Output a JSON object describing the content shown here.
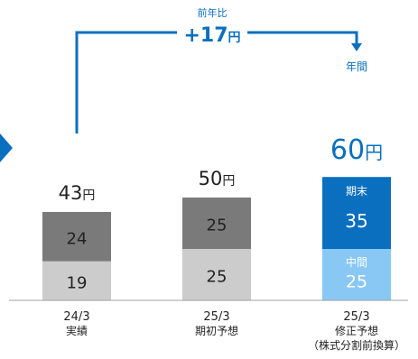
{
  "colors": {
    "h2_prev": "#7a7a7a",
    "h1_prev": "#cccccc",
    "h2_latest": "#0b6fbf",
    "h1_latest": "#89c8f5",
    "accent": "#0b6fbf",
    "axis": "#a0a0a0",
    "arrow_tip": "#0b6fbf"
  },
  "unit": "円",
  "yoy": {
    "label": "前年比",
    "value": "+17"
  },
  "annual_label": "年間",
  "segment_names": {
    "h1": "中間",
    "h2": "期末"
  },
  "chart_data": {
    "type": "bar",
    "stacked": true,
    "categories": [
      {
        "line1": "24/3",
        "line2": "実績",
        "line3": ""
      },
      {
        "line1": "25/3",
        "line2": "期初予想",
        "line3": ""
      },
      {
        "line1": "25/3",
        "line2": "修正予想",
        "line3": "（株式分割前換算）"
      }
    ],
    "series": [
      {
        "key": "h1",
        "values": [
          19,
          25,
          25
        ]
      },
      {
        "key": "h2",
        "values": [
          24,
          25,
          35
        ]
      }
    ],
    "totals": [
      "43",
      "50",
      "60"
    ],
    "ylim": [
      0,
      60
    ]
  }
}
